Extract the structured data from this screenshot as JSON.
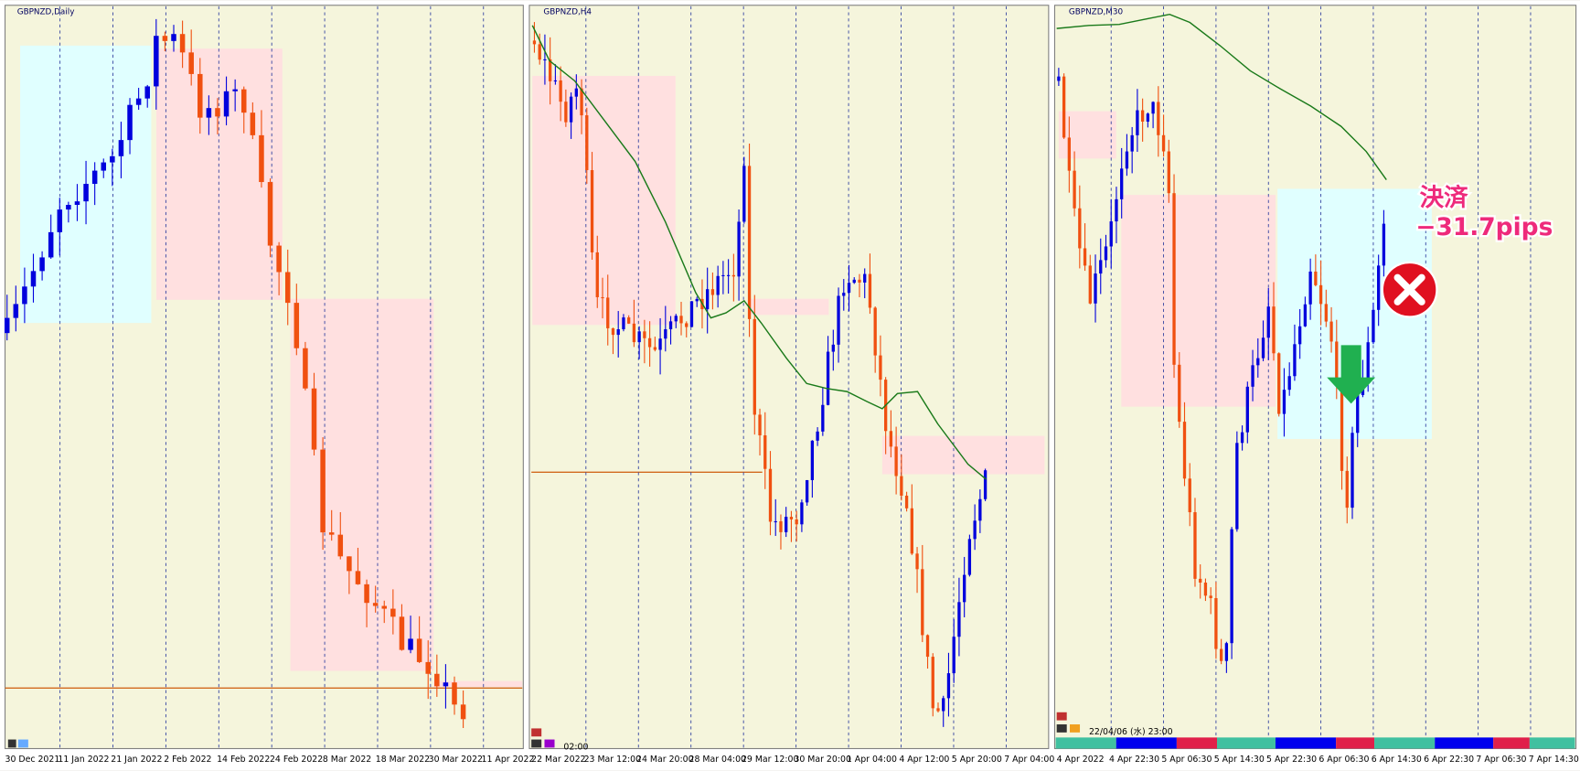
{
  "panels": [
    {
      "title": "GBPNZD,Daily",
      "x_labels": [
        "30 Dec 2021",
        "11 Jan 2022",
        "21 Jan 2022",
        "2 Feb 2022",
        "14 Feb 2022",
        "24 Feb 2022",
        "8 Mar 2022",
        "18 Mar 2022",
        "30 Mar 2022",
        "11 Apr 2022"
      ]
    },
    {
      "title": "GBPNZD,H4",
      "status": "02:00",
      "x_labels": [
        "22 Mar 2022",
        "23 Mar 12:00",
        "24 Mar 20:00",
        "28 Mar 04:00",
        "29 Mar 12:00",
        "30 Mar 20:00",
        "1 Apr 04:00",
        "4 Apr 12:00",
        "5 Apr 20:00",
        "7 Apr 04:00"
      ]
    },
    {
      "title": "GBPNZD,M30",
      "status": "22/04/06 (水) 23:00",
      "x_labels": [
        "4 Apr 2022",
        "4 Apr 22:30",
        "5 Apr 06:30",
        "5 Apr 14:30",
        "5 Apr 22:30",
        "6 Apr 06:30",
        "6 Apr 14:30",
        "6 Apr 22:30",
        "7 Apr 06:30",
        "7 Apr 14:30"
      ]
    }
  ],
  "annotation": {
    "line1": "決済",
    "line2": "−31.7pips"
  }
}
